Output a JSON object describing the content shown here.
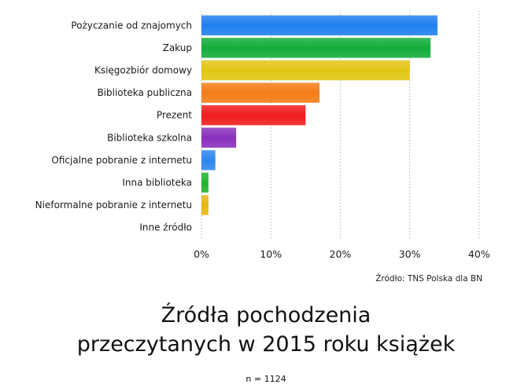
{
  "chart_data": {
    "type": "bar",
    "orientation": "horizontal",
    "categories": [
      "Pożyczanie od znajomych",
      "Zakup",
      "Księgozbiór domowy",
      "Biblioteka publiczna",
      "Prezent",
      "Biblioteka szkolna",
      "Oficjalne pobranie z internetu",
      "Inna biblioteka",
      "Nieformalne pobranie z internetu",
      "Inne źródło"
    ],
    "values": [
      34,
      33,
      30,
      17,
      15,
      5,
      2,
      1,
      1,
      0
    ],
    "unit": "%",
    "bar_colors": [
      "#1f7ff0",
      "#12ad3a",
      "#e2c514",
      "#f47c16",
      "#f01c1c",
      "#8a2fbd",
      "#2d86ef",
      "#1cb52b",
      "#e6b60e",
      "#cccccc"
    ],
    "xlim": [
      0,
      40
    ],
    "xticks": [
      "0%",
      "10%",
      "20%",
      "30%",
      "40%"
    ],
    "grid": true,
    "legend": "none"
  },
  "source": "Źródło: TNS Polska dla BN",
  "title_line1": "Źródła pochodzenia",
  "title_line2": "przeczytanych w 2015 roku książek",
  "sample_note": "n = 1124"
}
